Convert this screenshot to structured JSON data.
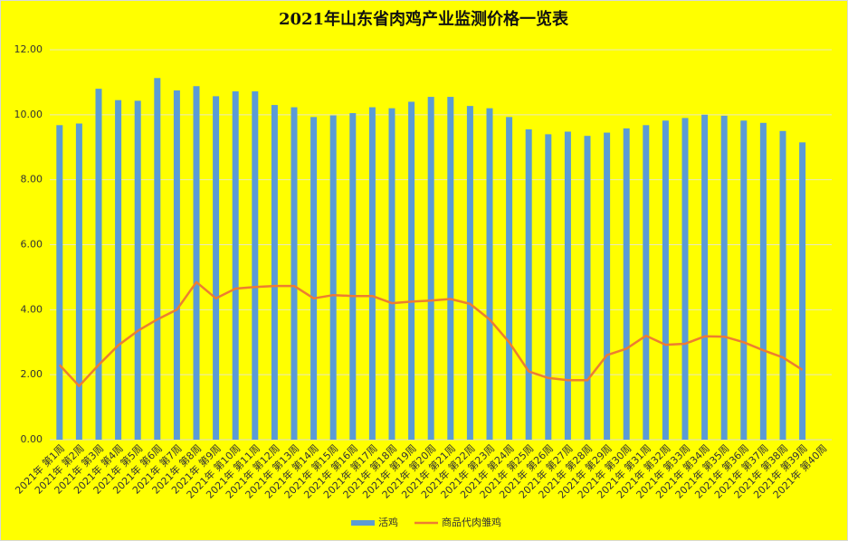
{
  "chart_data": {
    "type": "bar_line",
    "title": "2021年山东省肉鸡产业监测价格一览表",
    "categories": [
      "2021年 第1周",
      "2021年 第2周",
      "2021年 第3周",
      "2021年 第4周",
      "2021年 第5周",
      "2021年 第6周",
      "2021年 第7周",
      "2021年 第8周",
      "2021年 第9周",
      "2021年 第10周",
      "2021年 第11周",
      "2021年 第12周",
      "2021年 第13周",
      "2021年 第14周",
      "2021年 第15周",
      "2021年 第16周",
      "2021年 第17周",
      "2021年 第18周",
      "2021年 第19周",
      "2021年 第20周",
      "2021年 第21周",
      "2021年 第22周",
      "2021年 第23周",
      "2021年 第24周",
      "2021年 第25周",
      "2021年 第26周",
      "2021年 第27周",
      "2021年 第28周",
      "2021年 第29周",
      "2021年 第30周",
      "2021年 第31周",
      "2021年 第32周",
      "2021年 第33周",
      "2021年 第34周",
      "2021年 第35周",
      "2021年 第36周",
      "2021年 第37周",
      "2021年 第38周",
      "2021年 第39周",
      "2021年 第40周"
    ],
    "series": [
      {
        "name": "活鸡",
        "type": "bar",
        "color": "#5b9bd5",
        "values": [
          9.68,
          9.73,
          10.8,
          10.45,
          10.43,
          11.13,
          10.75,
          10.88,
          10.57,
          10.72,
          10.72,
          10.3,
          10.23,
          9.93,
          9.98,
          10.05,
          10.23,
          10.2,
          10.4,
          10.55,
          10.55,
          10.27,
          10.2,
          9.93,
          9.55,
          9.4,
          9.48,
          9.35,
          9.45,
          9.58,
          9.68,
          9.82,
          9.9,
          10.0,
          9.97,
          9.82,
          9.75,
          9.5,
          9.15,
          null
        ]
      },
      {
        "name": "商品代肉雏鸡",
        "type": "line",
        "color": "#ed7d31",
        "values": [
          2.3,
          1.65,
          2.3,
          2.9,
          3.35,
          3.7,
          4.0,
          4.85,
          4.35,
          4.65,
          4.7,
          4.73,
          4.73,
          4.35,
          4.45,
          4.42,
          4.42,
          4.2,
          4.25,
          4.28,
          4.33,
          4.18,
          3.7,
          3.0,
          2.1,
          1.9,
          1.83,
          1.83,
          2.6,
          2.8,
          3.2,
          2.92,
          2.95,
          3.18,
          3.17,
          3.0,
          2.75,
          2.53,
          2.15,
          null
        ]
      }
    ],
    "ylim": [
      0,
      12
    ],
    "yticks": [
      {
        "value": 0,
        "label": "0.00"
      },
      {
        "value": 2,
        "label": "2.00"
      },
      {
        "value": 4,
        "label": "4.00"
      },
      {
        "value": 6,
        "label": "6.00"
      },
      {
        "value": 8,
        "label": "8.00"
      },
      {
        "value": 10,
        "label": "10.00"
      },
      {
        "value": 12,
        "label": "12.00"
      }
    ],
    "grid": true,
    "legend": "bottom",
    "background": "#ffff00"
  }
}
